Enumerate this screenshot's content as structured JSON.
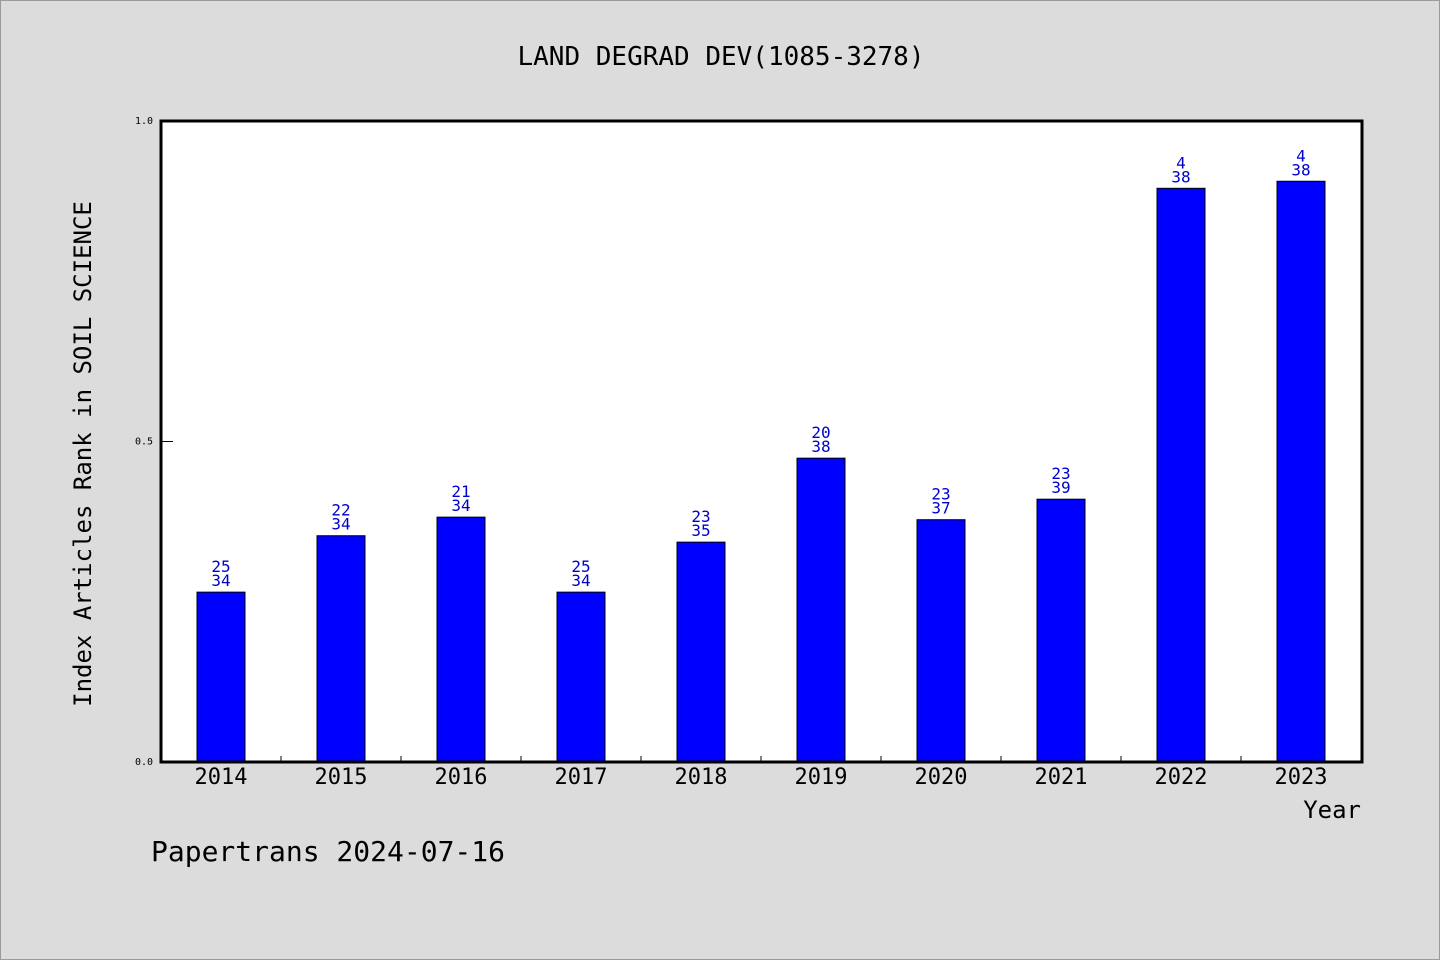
{
  "footer": {
    "note": "Papertrans 2024-07-16"
  },
  "colors": {
    "bar": "#0000ff",
    "bar_label": "#0000cc",
    "plot_bg": "#ffffff",
    "figure_bg": "#dcdcdc"
  },
  "chart_data": {
    "type": "bar",
    "title": "LAND DEGRAD DEV(1085-3278)",
    "xlabel": "Year",
    "ylabel": "Index Articles Rank in SOIL SCIENCE",
    "ylim": [
      0.0,
      1.0
    ],
    "yticks": [
      "0.0",
      "0.5",
      "1.0"
    ],
    "ytick_values": [
      0.0,
      0.5,
      1.0
    ],
    "grid": false,
    "categories": [
      "2014",
      "2015",
      "2016",
      "2017",
      "2018",
      "2019",
      "2020",
      "2021",
      "2022",
      "2023"
    ],
    "values": [
      0.265,
      0.353,
      0.382,
      0.265,
      0.343,
      0.474,
      0.378,
      0.41,
      0.895,
      0.906
    ],
    "rank": [
      "25",
      "22",
      "21",
      "25",
      "23",
      "20",
      "23",
      "23",
      "4",
      "4"
    ],
    "total": [
      "34",
      "34",
      "34",
      "34",
      "35",
      "38",
      "37",
      "39",
      "38",
      "38"
    ]
  }
}
